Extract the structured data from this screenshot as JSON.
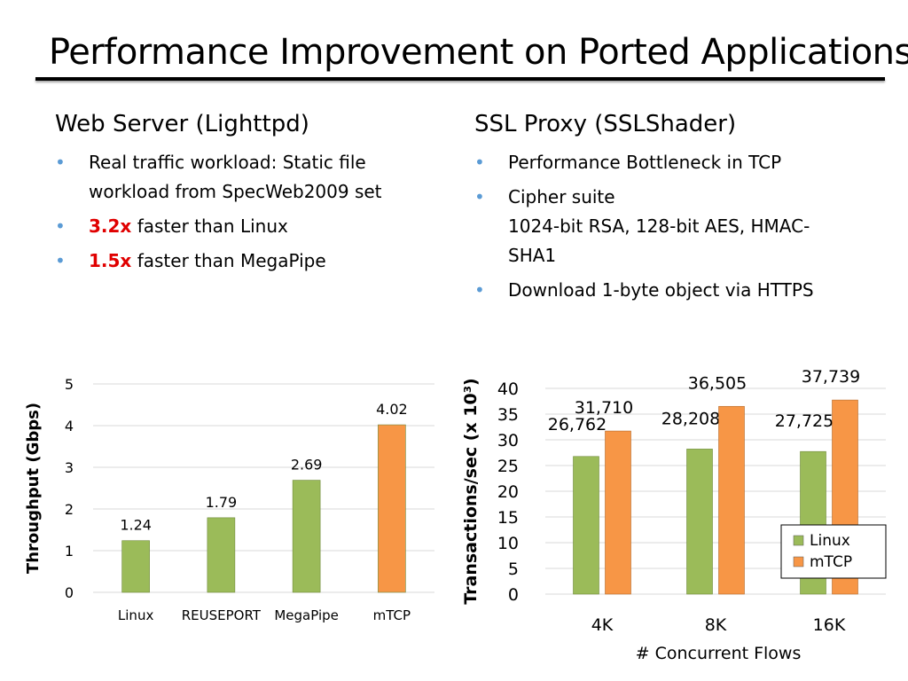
{
  "slide": {
    "title": "Performance Improvement on Ported Applications"
  },
  "left": {
    "heading": "Web Server (Lighttpd)",
    "bullets": [
      {
        "text_line1": "Real traffic workload: Static file",
        "text_line2": "workload from SpecWeb2009 set"
      },
      {
        "highlight": "3.2x",
        "rest": " faster than Linux"
      },
      {
        "highlight": "1.5x",
        "rest": " faster than MegaPipe"
      }
    ]
  },
  "right": {
    "heading": "SSL Proxy (SSLShader)",
    "bullets": [
      {
        "text": "Performance Bottleneck in TCP"
      },
      {
        "text_line1": "Cipher suite",
        "text_line2": "1024-bit RSA, 128-bit AES, HMAC-",
        "text_line3": "SHA1"
      },
      {
        "text": "Download 1-byte object via HTTPS"
      }
    ]
  },
  "colors": {
    "green": "#9bbb59",
    "orange": "#f79646",
    "bullet": "#5b9bd5"
  },
  "chart_data": [
    {
      "type": "bar",
      "title": "",
      "ylabel": "Throughput (Gbps)",
      "xlabel": "",
      "ylim": [
        0,
        5
      ],
      "yticks": [
        0,
        1,
        2,
        3,
        4,
        5
      ],
      "categories": [
        "Linux",
        "REUSEPORT",
        "MegaPipe",
        "mTCP"
      ],
      "values": [
        1.24,
        1.79,
        2.69,
        4.02
      ],
      "value_labels": [
        "1.24",
        "1.79",
        "2.69",
        "4.02"
      ],
      "bar_colors": [
        "#9bbb59",
        "#9bbb59",
        "#9bbb59",
        "#f79646"
      ],
      "grid": true
    },
    {
      "type": "bar",
      "title": "",
      "ylabel": "Transactions/sec (x 10³)",
      "xlabel": "# Concurrent Flows",
      "ylim": [
        0,
        40
      ],
      "yticks": [
        0,
        5,
        10,
        15,
        20,
        25,
        30,
        35,
        40
      ],
      "categories": [
        "4K",
        "8K",
        "16K"
      ],
      "series": [
        {
          "name": "Linux",
          "values": [
            26.762,
            28.208,
            27.725
          ],
          "labels": [
            "26,762",
            "28,208",
            "27,725"
          ],
          "color": "#9bbb59"
        },
        {
          "name": "mTCP",
          "values": [
            31.71,
            36.505,
            37.739
          ],
          "labels": [
            "31,710",
            "36,505",
            "37,739"
          ],
          "color": "#f79646"
        }
      ],
      "legend": "bottom-right",
      "grid": true
    }
  ]
}
